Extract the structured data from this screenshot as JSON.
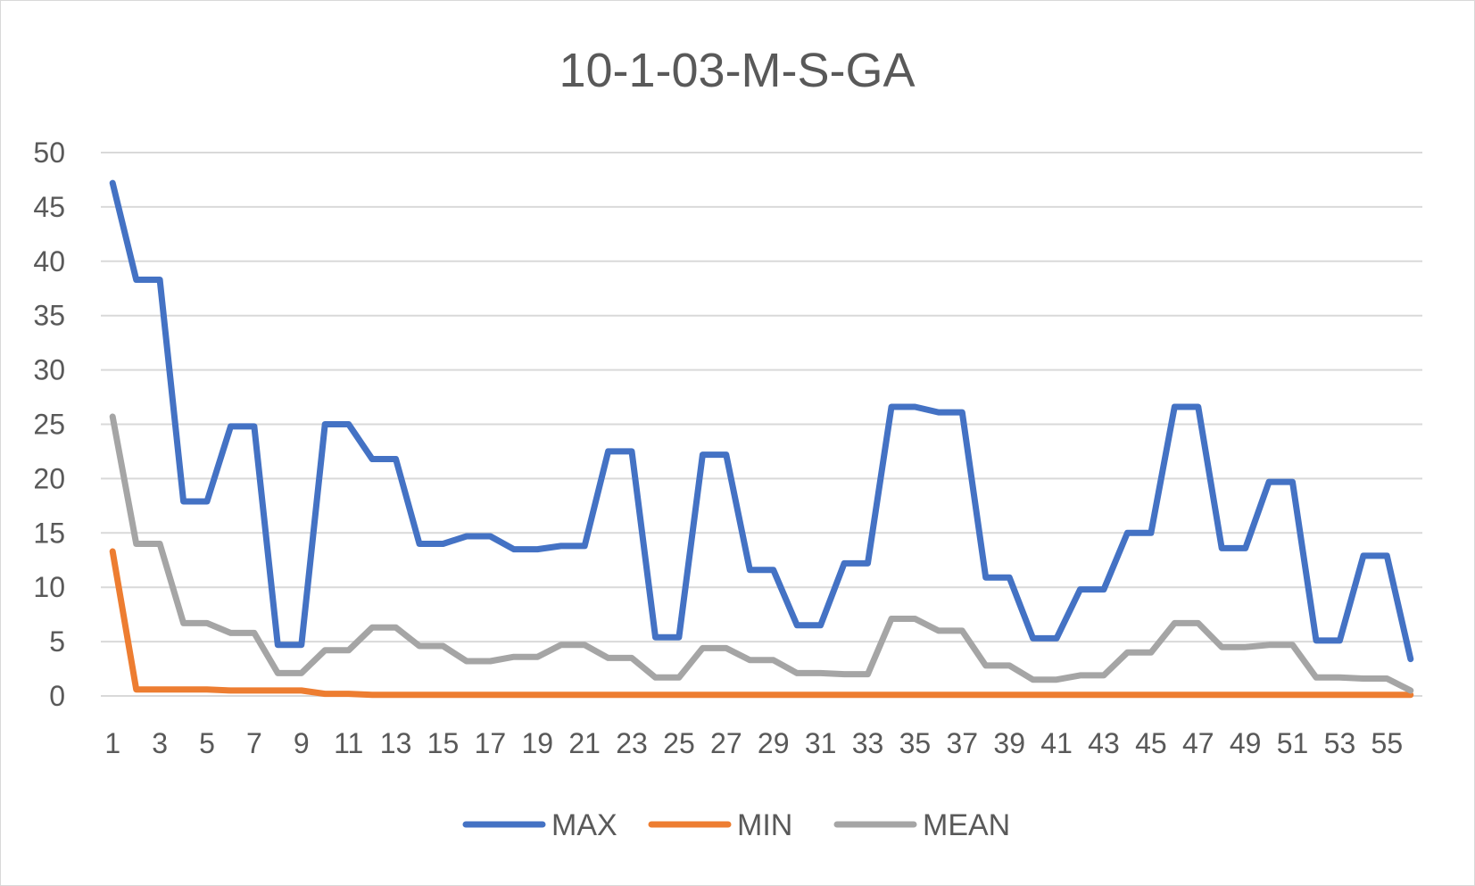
{
  "chart_data": {
    "type": "line",
    "title": "10-1-03-M-S-GA",
    "xlabel": "",
    "ylabel": "",
    "ylim": [
      0,
      50
    ],
    "yticks": [
      "0",
      "5",
      "10",
      "15",
      "20",
      "25",
      "30",
      "35",
      "40",
      "45",
      "50"
    ],
    "x": [
      1,
      2,
      3,
      4,
      5,
      6,
      7,
      8,
      9,
      10,
      11,
      12,
      13,
      14,
      15,
      16,
      17,
      18,
      19,
      20,
      21,
      22,
      23,
      24,
      25,
      26,
      27,
      28,
      29,
      30,
      31,
      32,
      33,
      34,
      35,
      36,
      37,
      38,
      39,
      40,
      41,
      42,
      43,
      44,
      45,
      46,
      47,
      48,
      49,
      50,
      51,
      52,
      53,
      54,
      55,
      56
    ],
    "xtick_labels": [
      "1",
      "3",
      "5",
      "7",
      "9",
      "11",
      "13",
      "15",
      "17",
      "19",
      "21",
      "23",
      "25",
      "27",
      "29",
      "31",
      "33",
      "35",
      "37",
      "39",
      "41",
      "43",
      "45",
      "47",
      "49",
      "51",
      "53",
      "55"
    ],
    "grid": true,
    "legend_position": "bottom",
    "series": [
      {
        "name": "MAX",
        "color": "#4472c4",
        "values": [
          47.2,
          38.3,
          38.3,
          17.9,
          17.9,
          24.8,
          24.8,
          4.7,
          4.7,
          25.0,
          25.0,
          21.8,
          21.8,
          14.0,
          14.0,
          14.7,
          14.7,
          13.5,
          13.5,
          13.8,
          13.8,
          22.5,
          22.5,
          5.4,
          5.4,
          22.2,
          22.2,
          11.6,
          11.6,
          6.5,
          6.5,
          12.2,
          12.2,
          26.6,
          26.6,
          26.1,
          26.1,
          10.9,
          10.9,
          5.3,
          5.3,
          9.8,
          9.8,
          15.0,
          15.0,
          26.6,
          26.6,
          13.6,
          13.6,
          19.7,
          19.7,
          5.1,
          5.1,
          12.9,
          12.9,
          3.4
        ]
      },
      {
        "name": "MIN",
        "color": "#ed7d31",
        "values": [
          13.3,
          0.6,
          0.6,
          0.6,
          0.6,
          0.5,
          0.5,
          0.5,
          0.5,
          0.2,
          0.2,
          0.1,
          0.1,
          0.1,
          0.1,
          0.1,
          0.1,
          0.1,
          0.1,
          0.1,
          0.1,
          0.1,
          0.1,
          0.1,
          0.1,
          0.1,
          0.1,
          0.1,
          0.1,
          0.1,
          0.1,
          0.1,
          0.1,
          0.1,
          0.1,
          0.1,
          0.1,
          0.1,
          0.1,
          0.1,
          0.1,
          0.1,
          0.1,
          0.1,
          0.1,
          0.1,
          0.1,
          0.1,
          0.1,
          0.1,
          0.1,
          0.1,
          0.1,
          0.1,
          0.1,
          0.1
        ]
      },
      {
        "name": "MEAN",
        "color": "#a5a5a5",
        "values": [
          25.7,
          14.0,
          14.0,
          6.7,
          6.7,
          5.8,
          5.8,
          2.1,
          2.1,
          4.2,
          4.2,
          6.3,
          6.3,
          4.6,
          4.6,
          3.2,
          3.2,
          3.6,
          3.6,
          4.7,
          4.7,
          3.5,
          3.5,
          1.7,
          1.7,
          4.4,
          4.4,
          3.3,
          3.3,
          2.1,
          2.1,
          2.0,
          2.0,
          7.1,
          7.1,
          6.0,
          6.0,
          2.8,
          2.8,
          1.5,
          1.5,
          1.9,
          1.9,
          4.0,
          4.0,
          6.7,
          6.7,
          4.5,
          4.5,
          4.7,
          4.7,
          1.7,
          1.7,
          1.6,
          1.6,
          0.5
        ]
      }
    ],
    "colors": {
      "gridline": "#d9d9d9",
      "text": "#595959",
      "border": "#d9d9d9"
    }
  }
}
